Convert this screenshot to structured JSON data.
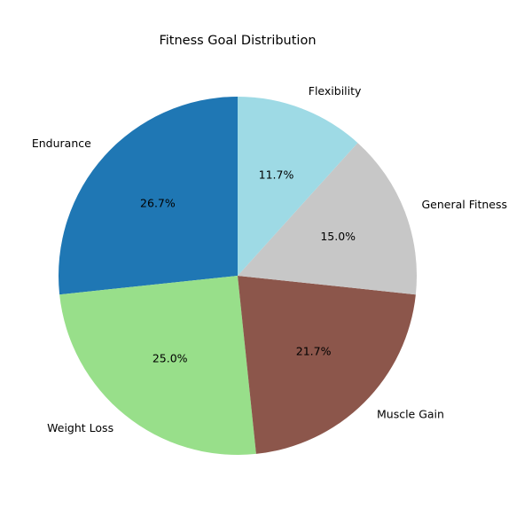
{
  "chart_data": {
    "type": "pie",
    "title": "Fitness Goal Distribution",
    "start_angle_deg": 90,
    "direction": "counterclockwise",
    "slices": [
      {
        "name": "Endurance",
        "value": 26.7,
        "pct_label": "26.7%",
        "color": "#1f77b4"
      },
      {
        "name": "Weight Loss",
        "value": 25.0,
        "pct_label": "25.0%",
        "color": "#98df8a"
      },
      {
        "name": "Muscle Gain",
        "value": 21.7,
        "pct_label": "21.7%",
        "color": "#8c564b"
      },
      {
        "name": "General Fitness",
        "value": 15.0,
        "pct_label": "15.0%",
        "color": "#c7c7c7"
      },
      {
        "name": "Flexibility",
        "value": 11.7,
        "pct_label": "11.7%",
        "color": "#9edae5"
      }
    ]
  }
}
